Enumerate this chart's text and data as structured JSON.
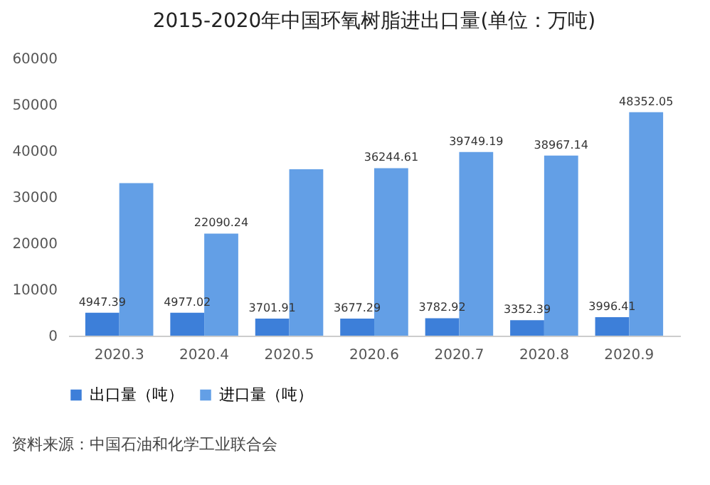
{
  "chart_data": {
    "type": "bar",
    "title": "2015-2020年中国环氧树脂进出口量(单位：万吨)",
    "categories": [
      "2020.3",
      "2020.4",
      "2020.5",
      "2020.6",
      "2020.7",
      "2020.8",
      "2020.9"
    ],
    "series": [
      {
        "name": "出口量（吨）",
        "color": "#3d7fd9",
        "values": [
          4947.39,
          4977.02,
          3701.91,
          3677.29,
          3782.92,
          3352.39,
          3996.41
        ],
        "value_labels": [
          "4947.39",
          "4977.02",
          "3701.91",
          "3677.29",
          "3782.92",
          "3352.39",
          "3996.41"
        ]
      },
      {
        "name": "进口量（吨）",
        "color": "#639fe6",
        "values": [
          33000,
          22090.24,
          36000,
          36244.61,
          39749.19,
          38967.14,
          48352.05
        ],
        "value_labels": [
          null,
          "22090.24",
          null,
          "36244.61",
          "39749.19",
          "38967.14",
          "48352.05"
        ]
      }
    ],
    "ylim": [
      0,
      60000
    ],
    "yticks": [
      0,
      10000,
      20000,
      30000,
      40000,
      50000,
      60000
    ],
    "grid": false,
    "legend": "bottom",
    "annotations": [
      "资料来源：中国石油和化学工业联合会"
    ]
  }
}
